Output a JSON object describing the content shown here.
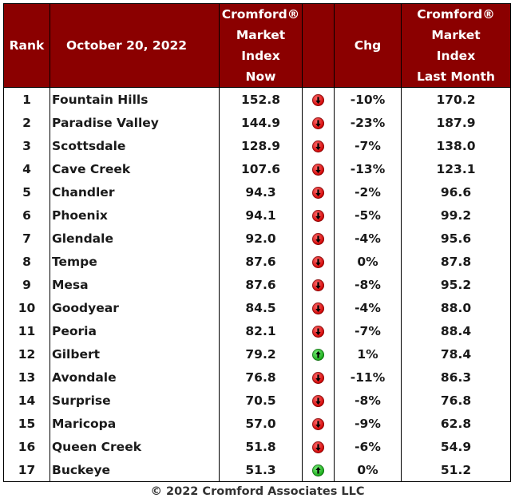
{
  "header": {
    "rank": "Rank",
    "date": "October 20, 2022",
    "index_now": [
      "Cromford®",
      "Market",
      "Index",
      "Now"
    ],
    "chg": "Chg",
    "index_last": [
      "Cromford®",
      "Market",
      "Index",
      "Last Month"
    ]
  },
  "colors": {
    "header_bg": "#8b0000",
    "header_text": "#ffffff",
    "down": "#d00000",
    "up": "#14a814"
  },
  "rows": [
    {
      "rank": "1",
      "name": "Fountain Hills",
      "now": "152.8",
      "dir": "down",
      "chg": "-10%",
      "last": "170.2"
    },
    {
      "rank": "2",
      "name": "Paradise Valley",
      "now": "144.9",
      "dir": "down",
      "chg": "-23%",
      "last": "187.9"
    },
    {
      "rank": "3",
      "name": "Scottsdale",
      "now": "128.9",
      "dir": "down",
      "chg": "-7%",
      "last": "138.0"
    },
    {
      "rank": "4",
      "name": "Cave Creek",
      "now": "107.6",
      "dir": "down",
      "chg": "-13%",
      "last": "123.1"
    },
    {
      "rank": "5",
      "name": "Chandler",
      "now": "94.3",
      "dir": "down",
      "chg": "-2%",
      "last": "96.6"
    },
    {
      "rank": "6",
      "name": "Phoenix",
      "now": "94.1",
      "dir": "down",
      "chg": "-5%",
      "last": "99.2"
    },
    {
      "rank": "7",
      "name": "Glendale",
      "now": "92.0",
      "dir": "down",
      "chg": "-4%",
      "last": "95.6"
    },
    {
      "rank": "8",
      "name": "Tempe",
      "now": "87.6",
      "dir": "down",
      "chg": "0%",
      "last": "87.8"
    },
    {
      "rank": "9",
      "name": "Mesa",
      "now": "87.6",
      "dir": "down",
      "chg": "-8%",
      "last": "95.2"
    },
    {
      "rank": "10",
      "name": "Goodyear",
      "now": "84.5",
      "dir": "down",
      "chg": "-4%",
      "last": "88.0"
    },
    {
      "rank": "11",
      "name": "Peoria",
      "now": "82.1",
      "dir": "down",
      "chg": "-7%",
      "last": "88.4"
    },
    {
      "rank": "12",
      "name": "Gilbert",
      "now": "79.2",
      "dir": "up",
      "chg": "1%",
      "last": "78.4"
    },
    {
      "rank": "13",
      "name": "Avondale",
      "now": "76.8",
      "dir": "down",
      "chg": "-11%",
      "last": "86.3"
    },
    {
      "rank": "14",
      "name": "Surprise",
      "now": "70.5",
      "dir": "down",
      "chg": "-8%",
      "last": "76.8"
    },
    {
      "rank": "15",
      "name": "Maricopa",
      "now": "57.0",
      "dir": "down",
      "chg": "-9%",
      "last": "62.8"
    },
    {
      "rank": "16",
      "name": "Queen Creek",
      "now": "51.8",
      "dir": "down",
      "chg": "-6%",
      "last": "54.9"
    },
    {
      "rank": "17",
      "name": "Buckeye",
      "now": "51.3",
      "dir": "up",
      "chg": "0%",
      "last": "51.2"
    }
  ],
  "footer": "© 2022 Cromford Associates LLC"
}
